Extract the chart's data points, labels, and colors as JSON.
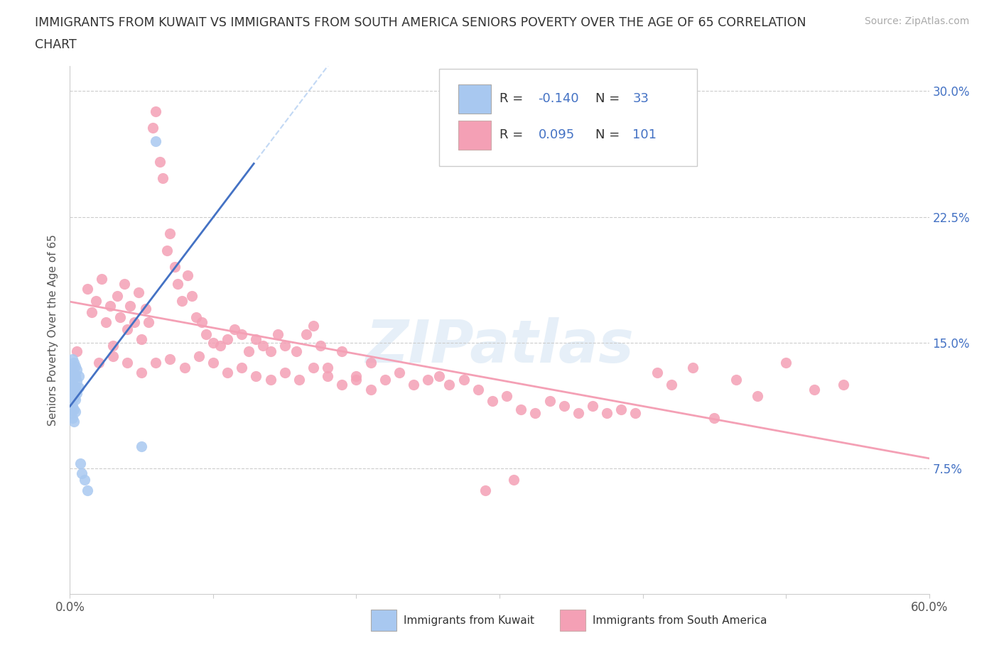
{
  "title_line1": "IMMIGRANTS FROM KUWAIT VS IMMIGRANTS FROM SOUTH AMERICA SENIORS POVERTY OVER THE AGE OF 65 CORRELATION",
  "title_line2": "CHART",
  "source_text": "Source: ZipAtlas.com",
  "ylabel": "Seniors Poverty Over the Age of 65",
  "xlim": [
    0.0,
    0.6
  ],
  "ylim": [
    0.0,
    0.315
  ],
  "background_color": "#ffffff",
  "grid_color": "#dddddd",
  "watermark": "ZIPatlas",
  "kuwait_color": "#a8c8f0",
  "south_america_color": "#f4a0b5",
  "kuwait_line_color": "#4472c4",
  "kuwait_dash_color": "#a8c8f0",
  "south_america_line_color": "#f4a0b5",
  "legend_text_color": "#4472c4",
  "kuwait_R": -0.14,
  "kuwait_N": 33,
  "south_america_R": 0.095,
  "south_america_N": 101,
  "kuwait_scatter_x": [
    0.001,
    0.001,
    0.001,
    0.001,
    0.001,
    0.002,
    0.002,
    0.002,
    0.002,
    0.002,
    0.002,
    0.003,
    0.003,
    0.003,
    0.003,
    0.003,
    0.003,
    0.004,
    0.004,
    0.004,
    0.004,
    0.004,
    0.005,
    0.005,
    0.005,
    0.006,
    0.006,
    0.007,
    0.008,
    0.01,
    0.012,
    0.05,
    0.06
  ],
  "kuwait_scatter_y": [
    0.135,
    0.128,
    0.122,
    0.115,
    0.108,
    0.14,
    0.133,
    0.127,
    0.12,
    0.112,
    0.105,
    0.138,
    0.131,
    0.124,
    0.117,
    0.11,
    0.103,
    0.136,
    0.13,
    0.123,
    0.116,
    0.109,
    0.134,
    0.127,
    0.12,
    0.13,
    0.123,
    0.078,
    0.072,
    0.068,
    0.062,
    0.088,
    0.27
  ],
  "south_america_scatter_x": [
    0.005,
    0.012,
    0.015,
    0.018,
    0.022,
    0.025,
    0.028,
    0.03,
    0.033,
    0.035,
    0.038,
    0.04,
    0.042,
    0.045,
    0.048,
    0.05,
    0.053,
    0.055,
    0.058,
    0.06,
    0.063,
    0.065,
    0.068,
    0.07,
    0.073,
    0.075,
    0.078,
    0.082,
    0.085,
    0.088,
    0.092,
    0.095,
    0.1,
    0.105,
    0.11,
    0.115,
    0.12,
    0.125,
    0.13,
    0.135,
    0.14,
    0.145,
    0.15,
    0.158,
    0.165,
    0.17,
    0.175,
    0.18,
    0.19,
    0.2,
    0.21,
    0.22,
    0.23,
    0.24,
    0.25,
    0.258,
    0.265,
    0.275,
    0.285,
    0.295,
    0.305,
    0.315,
    0.325,
    0.335,
    0.345,
    0.355,
    0.365,
    0.375,
    0.385,
    0.395,
    0.41,
    0.42,
    0.435,
    0.45,
    0.465,
    0.48,
    0.5,
    0.52,
    0.54,
    0.29,
    0.31,
    0.02,
    0.03,
    0.04,
    0.05,
    0.06,
    0.07,
    0.08,
    0.09,
    0.1,
    0.11,
    0.12,
    0.13,
    0.14,
    0.15,
    0.16,
    0.17,
    0.18,
    0.19,
    0.2,
    0.21
  ],
  "south_america_scatter_y": [
    0.145,
    0.182,
    0.168,
    0.175,
    0.188,
    0.162,
    0.172,
    0.148,
    0.178,
    0.165,
    0.185,
    0.158,
    0.172,
    0.162,
    0.18,
    0.152,
    0.17,
    0.162,
    0.278,
    0.288,
    0.258,
    0.248,
    0.205,
    0.215,
    0.195,
    0.185,
    0.175,
    0.19,
    0.178,
    0.165,
    0.162,
    0.155,
    0.15,
    0.148,
    0.152,
    0.158,
    0.155,
    0.145,
    0.152,
    0.148,
    0.145,
    0.155,
    0.148,
    0.145,
    0.155,
    0.16,
    0.148,
    0.135,
    0.145,
    0.13,
    0.138,
    0.128,
    0.132,
    0.125,
    0.128,
    0.13,
    0.125,
    0.128,
    0.122,
    0.115,
    0.118,
    0.11,
    0.108,
    0.115,
    0.112,
    0.108,
    0.112,
    0.108,
    0.11,
    0.108,
    0.132,
    0.125,
    0.135,
    0.105,
    0.128,
    0.118,
    0.138,
    0.122,
    0.125,
    0.062,
    0.068,
    0.138,
    0.142,
    0.138,
    0.132,
    0.138,
    0.14,
    0.135,
    0.142,
    0.138,
    0.132,
    0.135,
    0.13,
    0.128,
    0.132,
    0.128,
    0.135,
    0.13,
    0.125,
    0.128,
    0.122
  ]
}
